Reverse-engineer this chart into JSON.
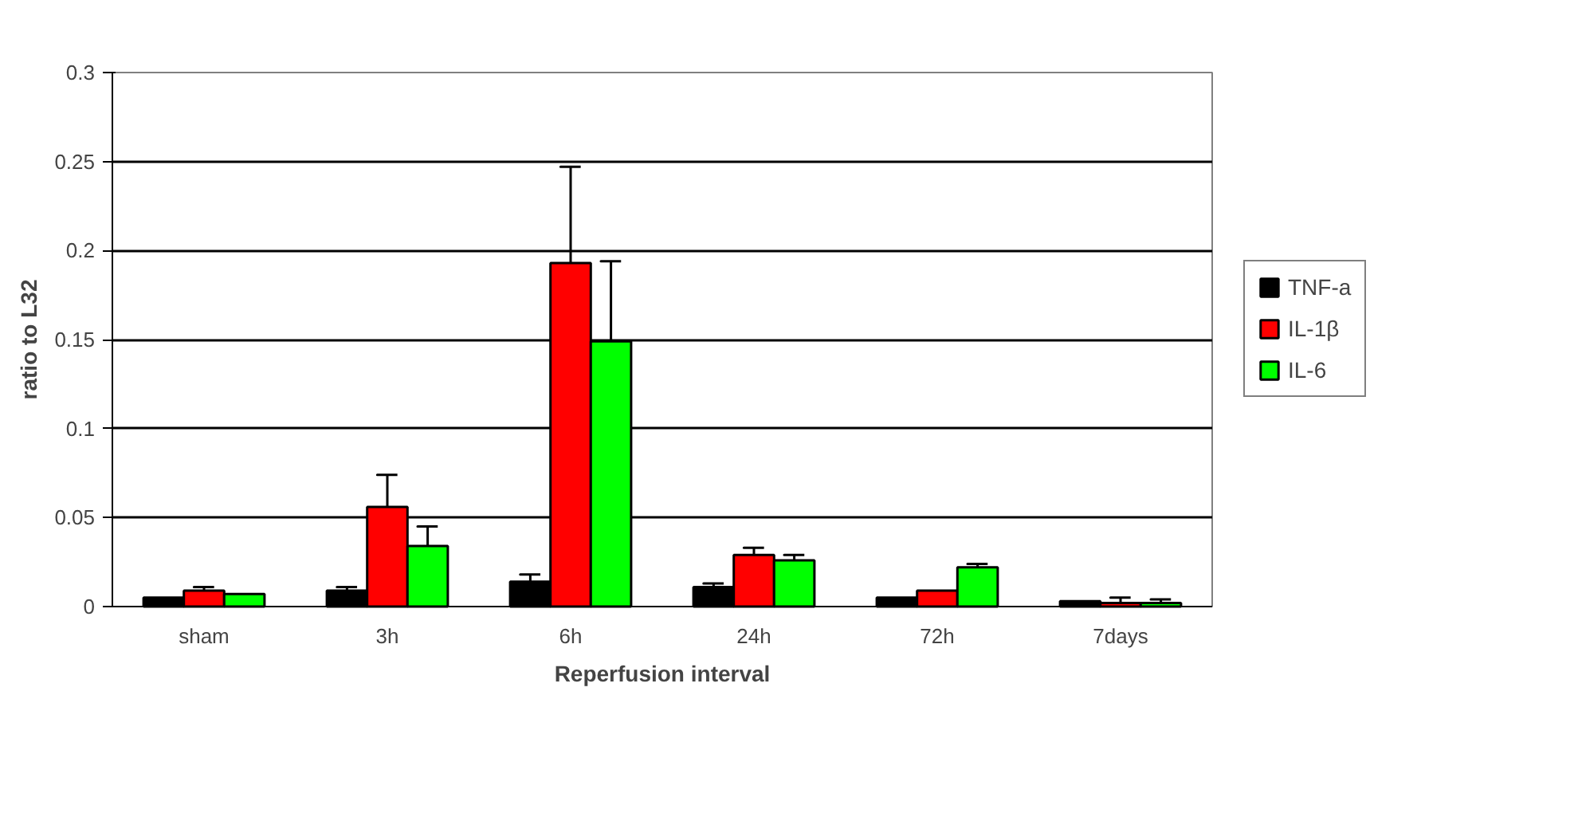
{
  "chart_data": {
    "type": "bar",
    "xlabel": "Reperfusion interval",
    "ylabel": "ratio to L32",
    "categories": [
      "sham",
      "3h",
      "6h",
      "24h",
      "72h",
      "7days"
    ],
    "series": [
      {
        "name": "TNF-a",
        "color": "#000000",
        "values": [
          0.005,
          0.009,
          0.014,
          0.011,
          0.005,
          0.003
        ],
        "errors": [
          null,
          [
            0.009,
            0.011
          ],
          [
            0.014,
            0.018
          ],
          [
            0.011,
            0.013
          ],
          null,
          null
        ]
      },
      {
        "name": "IL-1β",
        "color": "#ff0000",
        "values": [
          0.009,
          0.056,
          0.193,
          0.029,
          0.009,
          0.002
        ],
        "errors": [
          [
            0.009,
            0.011
          ],
          [
            0.056,
            0.074
          ],
          [
            0.193,
            0.247
          ],
          [
            0.029,
            0.033
          ],
          null,
          [
            0.002,
            0.005
          ]
        ]
      },
      {
        "name": "IL-6",
        "color": "#00ff00",
        "values": [
          0.007,
          0.034,
          0.149,
          0.026,
          0.022,
          0.002
        ],
        "errors": [
          null,
          [
            0.034,
            0.045
          ],
          [
            0.149,
            0.194
          ],
          [
            0.026,
            0.029
          ],
          [
            0.022,
            0.024
          ],
          [
            0.002,
            0.004
          ]
        ]
      }
    ],
    "ylim": [
      0,
      0.3
    ],
    "yticks": [
      0,
      0.05,
      0.1,
      0.15,
      0.2,
      0.25,
      0.3
    ],
    "grid": "y",
    "legend": "right"
  }
}
